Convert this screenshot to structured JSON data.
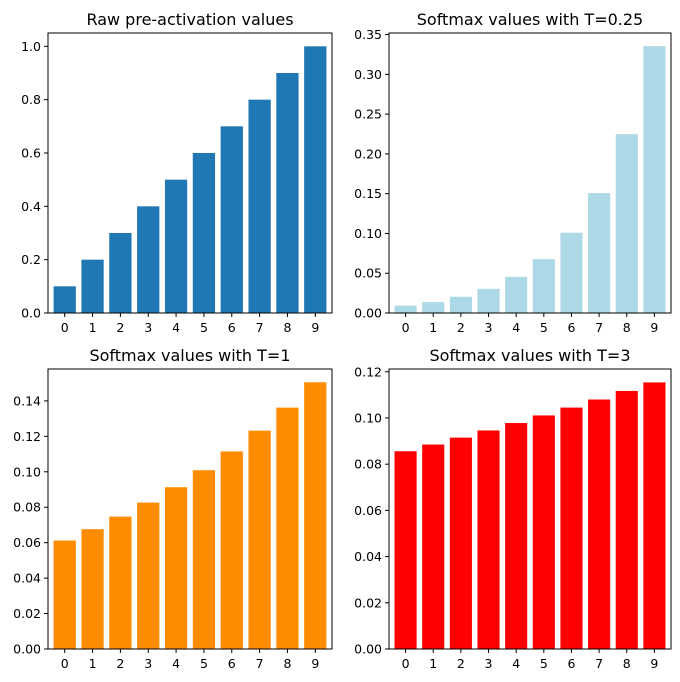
{
  "chart_data": [
    {
      "type": "bar",
      "title": "Raw pre-activation values",
      "categories": [
        "0",
        "1",
        "2",
        "3",
        "4",
        "5",
        "6",
        "7",
        "8",
        "9"
      ],
      "values": [
        0.1,
        0.2,
        0.3,
        0.4,
        0.5,
        0.6,
        0.7,
        0.8,
        0.9,
        1.0
      ],
      "ylim": [
        0,
        1.05
      ],
      "yticks": [
        0.0,
        0.2,
        0.4,
        0.6,
        0.8,
        1.0
      ],
      "ytick_labels": [
        "0.0",
        "0.2",
        "0.4",
        "0.6",
        "0.8",
        "1.0"
      ],
      "color": "#1f77b4",
      "xlabel": "",
      "ylabel": "",
      "grid": false
    },
    {
      "type": "bar",
      "title": "Softmax values with T=0.25",
      "categories": [
        "0",
        "1",
        "2",
        "3",
        "4",
        "5",
        "6",
        "7",
        "8",
        "9"
      ],
      "values": [
        0.0092,
        0.0137,
        0.0204,
        0.0304,
        0.0454,
        0.0677,
        0.101,
        0.1507,
        0.2248,
        0.3354
      ],
      "ylim": [
        0,
        0.352
      ],
      "yticks": [
        0.0,
        0.05,
        0.1,
        0.15,
        0.2,
        0.25,
        0.3,
        0.35
      ],
      "ytick_labels": [
        "0.00",
        "0.05",
        "0.10",
        "0.15",
        "0.20",
        "0.25",
        "0.30",
        "0.35"
      ],
      "color": "#add8e6",
      "xlabel": "",
      "ylabel": "",
      "grid": false
    },
    {
      "type": "bar",
      "title": "Softmax values with T=1",
      "categories": [
        "0",
        "1",
        "2",
        "3",
        "4",
        "5",
        "6",
        "7",
        "8",
        "9"
      ],
      "values": [
        0.0612,
        0.0676,
        0.0747,
        0.0826,
        0.0913,
        0.1009,
        0.1115,
        0.1232,
        0.1362,
        0.1505
      ],
      "ylim": [
        0,
        0.158
      ],
      "yticks": [
        0.0,
        0.02,
        0.04,
        0.06,
        0.08,
        0.1,
        0.12,
        0.14
      ],
      "ytick_labels": [
        "0.00",
        "0.02",
        "0.04",
        "0.06",
        "0.08",
        "0.10",
        "0.12",
        "0.14"
      ],
      "color": "#ff8c00",
      "xlabel": "",
      "ylabel": "",
      "grid": false
    },
    {
      "type": "bar",
      "title": "Softmax values with T=3",
      "categories": [
        "0",
        "1",
        "2",
        "3",
        "4",
        "5",
        "6",
        "7",
        "8",
        "9"
      ],
      "values": [
        0.0856,
        0.0885,
        0.0915,
        0.0946,
        0.0978,
        0.1011,
        0.1045,
        0.108,
        0.1117,
        0.1154
      ],
      "ylim": [
        0,
        0.1212
      ],
      "yticks": [
        0.0,
        0.02,
        0.04,
        0.06,
        0.08,
        0.1,
        0.12
      ],
      "ytick_labels": [
        "0.00",
        "0.02",
        "0.04",
        "0.06",
        "0.08",
        "0.10",
        "0.12"
      ],
      "color": "#ff0000",
      "xlabel": "",
      "ylabel": "",
      "grid": false
    }
  ]
}
